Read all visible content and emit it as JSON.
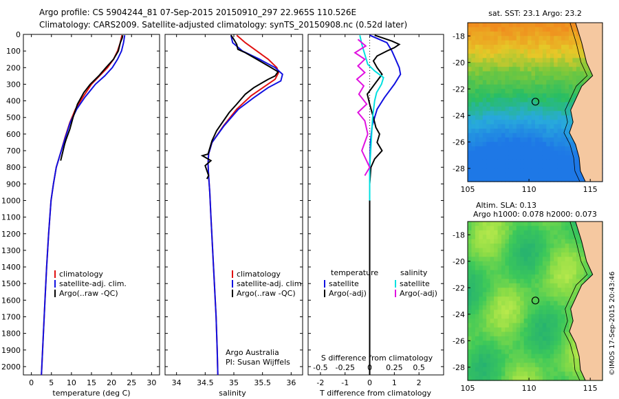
{
  "header": {
    "line1": "Argo profile: CS 5904244_81 07-Sep-2015 20150910_297 22.965S 110.526E",
    "line2": "Climatology: CARS2009. Satellite-adjusted climatology: synTS_20150908.nc (0.52d later)"
  },
  "credit": "©IMOS 17-Sep-2015 20:43:46",
  "colors": {
    "climatology": "#e01010",
    "satellite": "#1010e0",
    "argo": "#000000",
    "cyan": "#00e0e0",
    "magenta": "#e010e0",
    "sand": "#f5c8a0"
  },
  "chart_data": [
    {
      "type": "line",
      "id": "temperature",
      "xlabel": "temperature (deg C)",
      "xlim": [
        -2,
        32
      ],
      "ylim": [
        2050,
        0
      ],
      "xticks": [
        "0",
        "5",
        "10",
        "15",
        "20",
        "25",
        "30"
      ],
      "xtick_values": [
        0,
        5,
        10,
        15,
        20,
        25,
        30
      ],
      "yticks": [
        "0",
        "100",
        "200",
        "300",
        "400",
        "500",
        "600",
        "700",
        "800",
        "900",
        "1000",
        "1100",
        "1200",
        "1300",
        "1400",
        "1500",
        "1600",
        "1700",
        "1800",
        "1900",
        "2000"
      ],
      "ytick_values": [
        0,
        100,
        200,
        300,
        400,
        500,
        600,
        700,
        800,
        900,
        1000,
        1100,
        1200,
        1300,
        1400,
        1500,
        1600,
        1700,
        1800,
        1900,
        2000
      ],
      "legend": [
        "climatology",
        "satellite-adj. clim.",
        "Argo(..raw -QC)"
      ],
      "series": [
        {
          "name": "climatology",
          "color": "#e01010",
          "points": [
            [
              22.6,
              5
            ],
            [
              22.2,
              50
            ],
            [
              21.5,
              100
            ],
            [
              20.5,
              150
            ],
            [
              19,
              200
            ],
            [
              17,
              250
            ],
            [
              15,
              300
            ],
            [
              12.8,
              380
            ],
            [
              11,
              450
            ],
            [
              9.6,
              530
            ],
            [
              8.4,
              620
            ],
            [
              7.2,
              720
            ],
            [
              6.2,
              800
            ],
            [
              5.5,
              900
            ],
            [
              4.9,
              1000
            ],
            [
              4.3,
              1200
            ],
            [
              3.8,
              1400
            ],
            [
              3.4,
              1600
            ],
            [
              3,
              1800
            ],
            [
              2.6,
              2000
            ],
            [
              2.5,
              2050
            ]
          ]
        },
        {
          "name": "satellite-adj. clim.",
          "color": "#1010e0",
          "points": [
            [
              23.3,
              5
            ],
            [
              23,
              50
            ],
            [
              22.5,
              100
            ],
            [
              21.5,
              150
            ],
            [
              20.2,
              200
            ],
            [
              18.3,
              250
            ],
            [
              16,
              300
            ],
            [
              13.3,
              380
            ],
            [
              11.3,
              450
            ],
            [
              9.7,
              530
            ],
            [
              8.5,
              620
            ],
            [
              7.2,
              720
            ],
            [
              6.2,
              800
            ],
            [
              5.5,
              900
            ],
            [
              4.9,
              1000
            ],
            [
              4.3,
              1200
            ],
            [
              3.8,
              1400
            ],
            [
              3.4,
              1600
            ],
            [
              3,
              1800
            ],
            [
              2.6,
              2000
            ],
            [
              2.5,
              2050
            ]
          ]
        },
        {
          "name": "Argo(..raw -QC)",
          "color": "#000000",
          "points": [
            [
              22.8,
              5
            ],
            [
              22.7,
              20
            ],
            [
              22.2,
              50
            ],
            [
              21.7,
              100
            ],
            [
              20.5,
              150
            ],
            [
              18.6,
              200
            ],
            [
              16.8,
              250
            ],
            [
              14.7,
              300
            ],
            [
              13.1,
              350
            ],
            [
              11.5,
              420
            ],
            [
              10.4,
              500
            ],
            [
              9.6,
              570
            ],
            [
              8.7,
              630
            ],
            [
              8.3,
              660
            ],
            [
              7.9,
              700
            ],
            [
              7.3,
              760
            ]
          ]
        }
      ]
    },
    {
      "type": "line",
      "id": "salinity",
      "xlabel": "salinity",
      "xlim": [
        33.8,
        36.2
      ],
      "ylim": [
        2050,
        0
      ],
      "xticks": [
        "34",
        "34.5",
        "35",
        "35.5",
        "36"
      ],
      "xtick_values": [
        34,
        34.5,
        35,
        35.5,
        36
      ],
      "legend": [
        "climatology",
        "satellite-adj. clim.",
        "Argo(..raw -QC)"
      ],
      "annotations": [
        "Argo Australia",
        "PI: Susan Wijffels"
      ],
      "series": [
        {
          "name": "climatology",
          "color": "#e01010",
          "points": [
            [
              35.05,
              5
            ],
            [
              35.2,
              50
            ],
            [
              35.4,
              100
            ],
            [
              35.6,
              150
            ],
            [
              35.75,
              200
            ],
            [
              35.78,
              230
            ],
            [
              35.72,
              270
            ],
            [
              35.55,
              310
            ],
            [
              35.3,
              370
            ],
            [
              35.05,
              450
            ],
            [
              34.82,
              550
            ],
            [
              34.62,
              650
            ],
            [
              34.56,
              720
            ],
            [
              34.55,
              780
            ],
            [
              34.56,
              850
            ],
            [
              34.58,
              950
            ],
            [
              34.6,
              1100
            ],
            [
              34.63,
              1300
            ],
            [
              34.66,
              1500
            ],
            [
              34.69,
              1700
            ],
            [
              34.71,
              1900
            ],
            [
              34.72,
              2050
            ]
          ]
        },
        {
          "name": "satellite-adj. clim.",
          "color": "#1010e0",
          "points": [
            [
              34.95,
              5
            ],
            [
              34.98,
              50
            ],
            [
              35.15,
              100
            ],
            [
              35.45,
              150
            ],
            [
              35.72,
              200
            ],
            [
              35.85,
              240
            ],
            [
              35.82,
              280
            ],
            [
              35.6,
              320
            ],
            [
              35.35,
              380
            ],
            [
              35.08,
              450
            ],
            [
              34.83,
              550
            ],
            [
              34.62,
              650
            ],
            [
              34.56,
              720
            ],
            [
              34.55,
              780
            ],
            [
              34.56,
              850
            ],
            [
              34.58,
              950
            ],
            [
              34.6,
              1100
            ],
            [
              34.63,
              1300
            ],
            [
              34.66,
              1500
            ],
            [
              34.69,
              1700
            ],
            [
              34.71,
              1900
            ],
            [
              34.72,
              2050
            ]
          ]
        },
        {
          "name": "Argo(..raw -QC)",
          "color": "#000000",
          "points": [
            [
              34.95,
              5
            ],
            [
              35.0,
              30
            ],
            [
              35.05,
              60
            ],
            [
              35.07,
              90
            ],
            [
              35.2,
              110
            ],
            [
              35.35,
              140
            ],
            [
              35.5,
              170
            ],
            [
              35.65,
              200
            ],
            [
              35.77,
              225
            ],
            [
              35.72,
              250
            ],
            [
              35.6,
              270
            ],
            [
              35.5,
              290
            ],
            [
              35.35,
              320
            ],
            [
              35.2,
              360
            ],
            [
              35.05,
              420
            ],
            [
              34.92,
              470
            ],
            [
              34.8,
              530
            ],
            [
              34.7,
              580
            ],
            [
              34.62,
              640
            ],
            [
              34.55,
              720
            ],
            [
              34.45,
              730
            ],
            [
              34.6,
              760
            ],
            [
              34.5,
              790
            ],
            [
              34.56,
              850
            ],
            [
              34.53,
              870
            ]
          ]
        }
      ]
    },
    {
      "type": "line",
      "id": "differences",
      "xlabel": "T difference from climatology",
      "xlabel_top": "S difference from climatology",
      "xlim": [
        -2.5,
        3
      ],
      "ylim": [
        2050,
        0
      ],
      "xticks": [
        "-2",
        "-1",
        "0",
        "1",
        "2"
      ],
      "xtick_values": [
        -2,
        -1,
        0,
        1,
        2
      ],
      "s_ticks": [
        "-0.5",
        "-0.25",
        "0",
        "0.25",
        "0.5"
      ],
      "s_tick_values": [
        -0.5,
        -0.25,
        0,
        0.25,
        0.5
      ],
      "legend_temperature": {
        "heading": "temperature",
        "items": [
          "satellite",
          "Argo(-adj)"
        ]
      },
      "legend_salinity": {
        "heading": "salinity",
        "items": [
          "satellite",
          "Argo(-adj)"
        ]
      },
      "series": [
        {
          "name": "T satellite",
          "color": "#1010e0",
          "points": [
            [
              0,
              5
            ],
            [
              0.7,
              50
            ],
            [
              0.9,
              100
            ],
            [
              1.05,
              150
            ],
            [
              1.2,
              200
            ],
            [
              1.25,
              240
            ],
            [
              1,
              300
            ],
            [
              0.6,
              380
            ],
            [
              0.3,
              450
            ],
            [
              0.1,
              550
            ],
            [
              0.03,
              650
            ],
            [
              0,
              800
            ],
            [
              0,
              2050
            ]
          ]
        },
        {
          "name": "T Argo(-adj)",
          "color": "#000000",
          "points": [
            [
              0.2,
              5
            ],
            [
              0.5,
              20
            ],
            [
              0.9,
              40
            ],
            [
              1.2,
              60
            ],
            [
              1.0,
              80
            ],
            [
              0.7,
              100
            ],
            [
              0.3,
              130
            ],
            [
              0.15,
              160
            ],
            [
              0.3,
              200
            ],
            [
              0.5,
              240
            ],
            [
              0.2,
              300
            ],
            [
              -0.1,
              360
            ],
            [
              0.0,
              420
            ],
            [
              0.15,
              500
            ],
            [
              0.25,
              560
            ],
            [
              0.4,
              600
            ],
            [
              0.3,
              650
            ],
            [
              0.5,
              700
            ],
            [
              0.2,
              750
            ],
            [
              0.05,
              800
            ],
            [
              0,
              900
            ],
            [
              0,
              2050
            ]
          ]
        },
        {
          "name": "S satellite",
          "color": "#00e0e0",
          "points": [
            [
              -0.1,
              5
            ],
            [
              -0.08,
              60
            ],
            [
              -0.05,
              120
            ],
            [
              -0.02,
              180
            ],
            [
              0.05,
              220
            ],
            [
              0.14,
              260
            ],
            [
              0.12,
              300
            ],
            [
              0.07,
              350
            ],
            [
              0.05,
              400
            ],
            [
              0.03,
              500
            ],
            [
              0.02,
              600
            ],
            [
              0.01,
              700
            ],
            [
              0,
              800
            ],
            [
              0,
              1000
            ]
          ]
        },
        {
          "name": "S Argo(-adj)",
          "color": "#e010e0",
          "points": [
            [
              -0.12,
              30
            ],
            [
              -0.04,
              70
            ],
            [
              -0.15,
              110
            ],
            [
              -0.05,
              150
            ],
            [
              -0.12,
              190
            ],
            [
              -0.05,
              230
            ],
            [
              -0.13,
              270
            ],
            [
              -0.06,
              310
            ],
            [
              -0.11,
              360
            ],
            [
              -0.03,
              420
            ],
            [
              -0.12,
              470
            ],
            [
              -0.05,
              520
            ],
            [
              -0.02,
              600
            ],
            [
              -0.08,
              700
            ],
            [
              0,
              800
            ],
            [
              -0.05,
              850
            ]
          ]
        }
      ]
    },
    {
      "type": "heatmap",
      "id": "sst-map",
      "title": "sat. SST: 23.1  Argo: 23.2",
      "xlim": [
        105,
        116
      ],
      "ylim": [
        -29,
        -17
      ],
      "xticks": [
        "105",
        "110",
        "115"
      ],
      "xtick_values": [
        105,
        110,
        115
      ],
      "yticks": [
        "-18",
        "-20",
        "-22",
        "-24",
        "-26",
        "-28"
      ],
      "ytick_values": [
        -18,
        -20,
        -22,
        -24,
        -26,
        -28
      ],
      "marker": {
        "lon": 110.526,
        "lat": -22.965
      }
    },
    {
      "type": "heatmap",
      "id": "sla-map",
      "title": "Altim. SLA: 0.13",
      "subtitle": "Argo h1000: 0.078 h2000: 0.073",
      "xlim": [
        105,
        116
      ],
      "ylim": [
        -29,
        -17
      ],
      "xticks": [
        "105",
        "110",
        "115"
      ],
      "xtick_values": [
        105,
        110,
        115
      ],
      "yticks": [
        "-18",
        "-20",
        "-22",
        "-24",
        "-26",
        "-28"
      ],
      "ytick_values": [
        -18,
        -20,
        -22,
        -24,
        -26,
        -28
      ],
      "marker": {
        "lon": 110.526,
        "lat": -22.965
      }
    }
  ]
}
